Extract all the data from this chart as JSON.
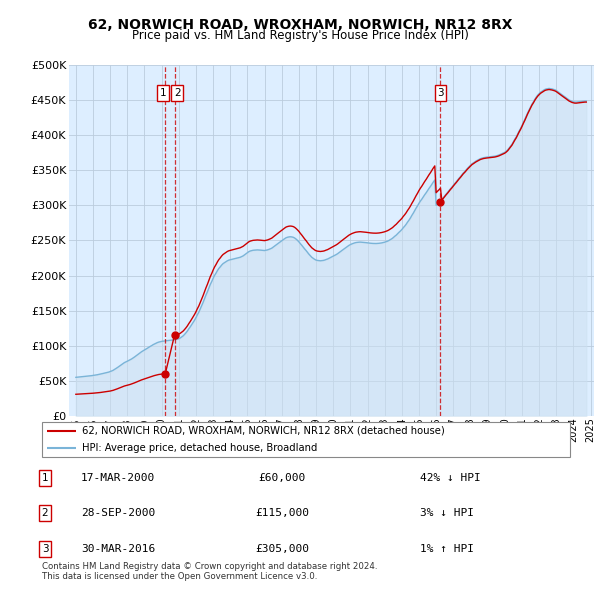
{
  "title": "62, NORWICH ROAD, WROXHAM, NORWICH, NR12 8RX",
  "subtitle": "Price paid vs. HM Land Registry's House Price Index (HPI)",
  "sale_dates_decimal": [
    2000.21,
    2000.75,
    2016.25
  ],
  "sale_prices": [
    60000,
    115000,
    305000
  ],
  "sale_labels": [
    "1",
    "2",
    "3"
  ],
  "legend_line1": "62, NORWICH ROAD, WROXHAM, NORWICH, NR12 8RX (detached house)",
  "legend_line2": "HPI: Average price, detached house, Broadland",
  "table_rows": [
    {
      "num": "1",
      "date": "17-MAR-2000",
      "price": "£60,000",
      "hpi": "42% ↓ HPI"
    },
    {
      "num": "2",
      "date": "28-SEP-2000",
      "price": "£115,000",
      "hpi": "3% ↓ HPI"
    },
    {
      "num": "3",
      "date": "30-MAR-2016",
      "price": "£305,000",
      "hpi": "1% ↑ HPI"
    }
  ],
  "footer": "Contains HM Land Registry data © Crown copyright and database right 2024.\nThis data is licensed under the Open Government Licence v3.0.",
  "hpi_color": "#7ab4d8",
  "sale_color": "#cc0000",
  "marker_box_color": "#cc0000",
  "chart_bg_color": "#ddeeff",
  "background_color": "#ffffff",
  "grid_color": "#bbccdd",
  "ylim": [
    0,
    500000
  ],
  "yticks": [
    0,
    50000,
    100000,
    150000,
    200000,
    250000,
    300000,
    350000,
    400000,
    450000,
    500000
  ],
  "hpi_years": [
    1995.0,
    1995.08,
    1995.17,
    1995.25,
    1995.33,
    1995.42,
    1995.5,
    1995.58,
    1995.67,
    1995.75,
    1995.83,
    1995.92,
    1996.0,
    1996.08,
    1996.17,
    1996.25,
    1996.33,
    1996.42,
    1996.5,
    1996.58,
    1996.67,
    1996.75,
    1996.83,
    1996.92,
    1997.0,
    1997.08,
    1997.17,
    1997.25,
    1997.33,
    1997.42,
    1997.5,
    1997.58,
    1997.67,
    1997.75,
    1997.83,
    1997.92,
    1998.0,
    1998.08,
    1998.17,
    1998.25,
    1998.33,
    1998.42,
    1998.5,
    1998.58,
    1998.67,
    1998.75,
    1998.83,
    1998.92,
    1999.0,
    1999.08,
    1999.17,
    1999.25,
    1999.33,
    1999.42,
    1999.5,
    1999.58,
    1999.67,
    1999.75,
    1999.83,
    1999.92,
    2000.0,
    2000.08,
    2000.17,
    2000.25,
    2000.33,
    2000.42,
    2000.5,
    2000.58,
    2000.67,
    2000.75,
    2000.83,
    2000.92,
    2001.0,
    2001.08,
    2001.17,
    2001.25,
    2001.33,
    2001.42,
    2001.5,
    2001.58,
    2001.67,
    2001.75,
    2001.83,
    2001.92,
    2002.0,
    2002.08,
    2002.17,
    2002.25,
    2002.33,
    2002.42,
    2002.5,
    2002.58,
    2002.67,
    2002.75,
    2002.83,
    2002.92,
    2003.0,
    2003.08,
    2003.17,
    2003.25,
    2003.33,
    2003.42,
    2003.5,
    2003.58,
    2003.67,
    2003.75,
    2003.83,
    2003.92,
    2004.0,
    2004.08,
    2004.17,
    2004.25,
    2004.33,
    2004.42,
    2004.5,
    2004.58,
    2004.67,
    2004.75,
    2004.83,
    2004.92,
    2005.0,
    2005.08,
    2005.17,
    2005.25,
    2005.33,
    2005.42,
    2005.5,
    2005.58,
    2005.67,
    2005.75,
    2005.83,
    2005.92,
    2006.0,
    2006.08,
    2006.17,
    2006.25,
    2006.33,
    2006.42,
    2006.5,
    2006.58,
    2006.67,
    2006.75,
    2006.83,
    2006.92,
    2007.0,
    2007.08,
    2007.17,
    2007.25,
    2007.33,
    2007.42,
    2007.5,
    2007.58,
    2007.67,
    2007.75,
    2007.83,
    2007.92,
    2008.0,
    2008.08,
    2008.17,
    2008.25,
    2008.33,
    2008.42,
    2008.5,
    2008.58,
    2008.67,
    2008.75,
    2008.83,
    2008.92,
    2009.0,
    2009.08,
    2009.17,
    2009.25,
    2009.33,
    2009.42,
    2009.5,
    2009.58,
    2009.67,
    2009.75,
    2009.83,
    2009.92,
    2010.0,
    2010.08,
    2010.17,
    2010.25,
    2010.33,
    2010.42,
    2010.5,
    2010.58,
    2010.67,
    2010.75,
    2010.83,
    2010.92,
    2011.0,
    2011.08,
    2011.17,
    2011.25,
    2011.33,
    2011.42,
    2011.5,
    2011.58,
    2011.67,
    2011.75,
    2011.83,
    2011.92,
    2012.0,
    2012.08,
    2012.17,
    2012.25,
    2012.33,
    2012.42,
    2012.5,
    2012.58,
    2012.67,
    2012.75,
    2012.83,
    2012.92,
    2013.0,
    2013.08,
    2013.17,
    2013.25,
    2013.33,
    2013.42,
    2013.5,
    2013.58,
    2013.67,
    2013.75,
    2013.83,
    2013.92,
    2014.0,
    2014.08,
    2014.17,
    2014.25,
    2014.33,
    2014.42,
    2014.5,
    2014.58,
    2014.67,
    2014.75,
    2014.83,
    2014.92,
    2015.0,
    2015.08,
    2015.17,
    2015.25,
    2015.33,
    2015.42,
    2015.5,
    2015.58,
    2015.67,
    2015.75,
    2015.83,
    2015.92,
    2016.0,
    2016.08,
    2016.17,
    2016.25,
    2016.33,
    2016.42,
    2016.5,
    2016.58,
    2016.67,
    2016.75,
    2016.83,
    2016.92,
    2017.0,
    2017.08,
    2017.17,
    2017.25,
    2017.33,
    2017.42,
    2017.5,
    2017.58,
    2017.67,
    2017.75,
    2017.83,
    2017.92,
    2018.0,
    2018.08,
    2018.17,
    2018.25,
    2018.33,
    2018.42,
    2018.5,
    2018.58,
    2018.67,
    2018.75,
    2018.83,
    2018.92,
    2019.0,
    2019.08,
    2019.17,
    2019.25,
    2019.33,
    2019.42,
    2019.5,
    2019.58,
    2019.67,
    2019.75,
    2019.83,
    2019.92,
    2020.0,
    2020.08,
    2020.17,
    2020.25,
    2020.33,
    2020.42,
    2020.5,
    2020.58,
    2020.67,
    2020.75,
    2020.83,
    2020.92,
    2021.0,
    2021.08,
    2021.17,
    2021.25,
    2021.33,
    2021.42,
    2021.5,
    2021.58,
    2021.67,
    2021.75,
    2021.83,
    2021.92,
    2022.0,
    2022.08,
    2022.17,
    2022.25,
    2022.33,
    2022.42,
    2022.5,
    2022.58,
    2022.67,
    2022.75,
    2022.83,
    2022.92,
    2023.0,
    2023.08,
    2023.17,
    2023.25,
    2023.33,
    2023.42,
    2023.5,
    2023.58,
    2023.67,
    2023.75,
    2023.83,
    2023.92,
    2024.0,
    2024.08,
    2024.17,
    2024.25,
    2024.33,
    2024.42,
    2024.5,
    2024.58,
    2024.67,
    2024.75
  ],
  "hpi_values": [
    55000,
    55200,
    55400,
    55600,
    55800,
    56000,
    56200,
    56500,
    56800,
    57000,
    57200,
    57400,
    57700,
    58000,
    58300,
    58700,
    59100,
    59500,
    60000,
    60500,
    61000,
    61500,
    62000,
    62500,
    63200,
    64000,
    65000,
    66200,
    67500,
    68900,
    70300,
    71800,
    73300,
    74800,
    76000,
    77000,
    78000,
    79000,
    80000,
    81200,
    82500,
    84000,
    85500,
    87000,
    88500,
    90000,
    91500,
    92800,
    94000,
    95200,
    96500,
    97800,
    99000,
    100200,
    101500,
    102500,
    103500,
    104500,
    105200,
    105800,
    106200,
    106500,
    106800,
    107000,
    107300,
    107500,
    107800,
    108000,
    108300,
    108500,
    109000,
    109500,
    110000,
    111000,
    112500,
    114000,
    116000,
    118500,
    121000,
    124000,
    127000,
    130000,
    133000,
    136500,
    140000,
    144000,
    148000,
    152500,
    157000,
    162000,
    167000,
    172000,
    177000,
    182000,
    187000,
    191500,
    196000,
    200000,
    203500,
    207000,
    210000,
    212500,
    215000,
    217000,
    218500,
    220000,
    221000,
    222000,
    222500,
    223000,
    223500,
    224000,
    224500,
    225000,
    225500,
    226000,
    227000,
    228000,
    229500,
    231000,
    232500,
    234000,
    235000,
    235500,
    236000,
    236200,
    236400,
    236500,
    236400,
    236200,
    236000,
    235800,
    235600,
    236000,
    236500,
    237200,
    238000,
    239000,
    240500,
    242000,
    243500,
    245000,
    246500,
    248000,
    249500,
    251000,
    252500,
    253800,
    254500,
    255000,
    255200,
    255000,
    254500,
    253500,
    252000,
    250000,
    248000,
    245500,
    243000,
    240500,
    238000,
    235500,
    233000,
    230500,
    228000,
    226000,
    224500,
    223000,
    222000,
    221500,
    221200,
    221000,
    221200,
    221500,
    222000,
    222800,
    223500,
    224500,
    225500,
    226500,
    227500,
    228500,
    229800,
    231000,
    232500,
    234000,
    235500,
    237000,
    238500,
    240000,
    241500,
    243000,
    244000,
    245000,
    245800,
    246500,
    247000,
    247300,
    247500,
    247600,
    247400,
    247200,
    247000,
    246800,
    246500,
    246200,
    246000,
    245800,
    245700,
    245600,
    245600,
    245700,
    245900,
    246200,
    246500,
    247000,
    247500,
    248200,
    249000,
    250000,
    251200,
    252500,
    254000,
    255800,
    257500,
    259500,
    261500,
    263500,
    265500,
    268000,
    270500,
    273000,
    276000,
    279000,
    282000,
    285500,
    289000,
    292500,
    296000,
    299500,
    303000,
    306000,
    309000,
    312000,
    315000,
    318000,
    321000,
    324000,
    327000,
    330000,
    333000,
    336000,
    300000,
    302000,
    304000,
    306000,
    308500,
    311000,
    313500,
    316000,
    318500,
    321000,
    323500,
    326000,
    328500,
    331000,
    333500,
    336000,
    338500,
    341000,
    343500,
    346000,
    348200,
    350500,
    352800,
    355000,
    357000,
    359000,
    360500,
    362000,
    363200,
    364400,
    365500,
    366500,
    367200,
    367800,
    368200,
    368500,
    368800,
    369000,
    369200,
    369400,
    369700,
    370000,
    370500,
    371000,
    371800,
    372700,
    373500,
    374500,
    375500,
    377000,
    379000,
    381500,
    384000,
    387000,
    390500,
    394000,
    397500,
    401500,
    405500,
    409500,
    413500,
    418000,
    422500,
    427000,
    431500,
    436000,
    440000,
    444000,
    447500,
    451000,
    454000,
    457000,
    459000,
    461000,
    462500,
    464000,
    465000,
    465800,
    466200,
    466500,
    466200,
    465800,
    465200,
    464500,
    463500,
    462000,
    460500,
    459000,
    457500,
    456000,
    454500,
    453000,
    451500,
    450000,
    449000,
    448000,
    447500,
    447000,
    447000,
    447200,
    447500,
    447800,
    448100,
    448400,
    448500,
    448500
  ]
}
